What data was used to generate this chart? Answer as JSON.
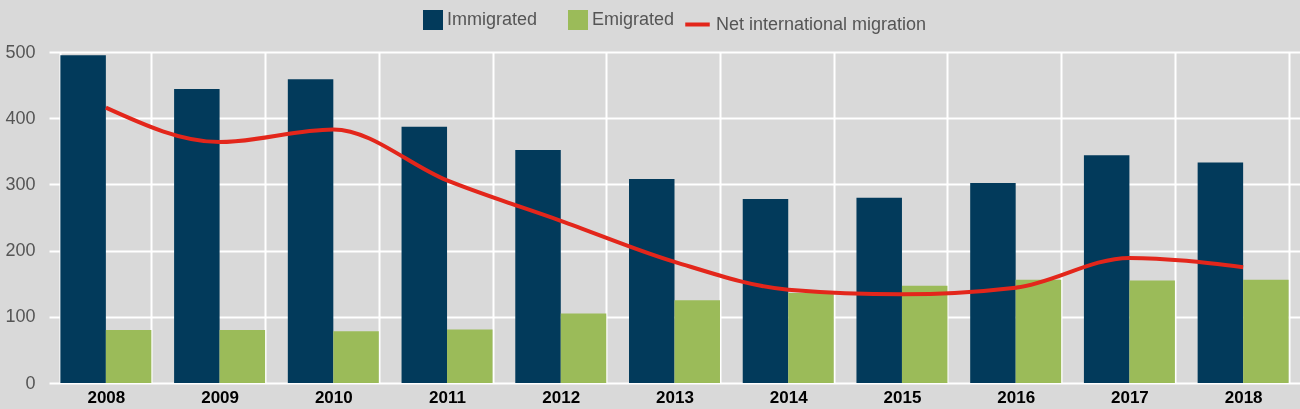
{
  "chart_data": {
    "type": "bar",
    "categories": [
      "2008",
      "2009",
      "2010",
      "2011",
      "2012",
      "2013",
      "2014",
      "2015",
      "2016",
      "2017",
      "2018"
    ],
    "series": [
      {
        "name": "Immigrated",
        "color": "#023a5b",
        "values": [
          495,
          444,
          459,
          387,
          352,
          308,
          278,
          280,
          302,
          344,
          333
        ]
      },
      {
        "name": "Emigrated",
        "color": "#9bbb59",
        "values": [
          80,
          80,
          78,
          81,
          105,
          125,
          136,
          147,
          156,
          155,
          156
        ]
      },
      {
        "name": "Net international migration",
        "type": "line",
        "color": "#e3261b",
        "values": [
          416,
          364,
          383,
          306,
          245,
          183,
          141,
          134,
          144,
          189,
          175
        ]
      }
    ],
    "ylim": [
      0,
      500
    ],
    "yticks": [
      0,
      100,
      200,
      300,
      400,
      500
    ],
    "grid": true,
    "legend": "top"
  }
}
